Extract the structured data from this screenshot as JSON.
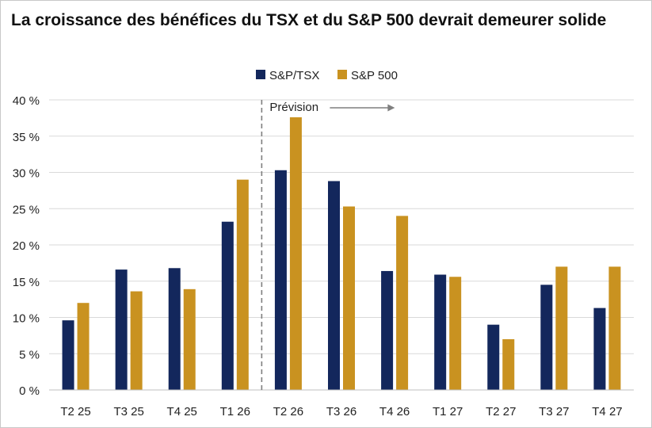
{
  "title": "La croissance des bénéfices du TSX et du S&P 500 devrait demeurer solide",
  "chart_data": {
    "type": "bar",
    "title": "La croissance des bénéfices du TSX et du S&P 500 devrait demeurer solide",
    "categories": [
      "T2 25",
      "T3 25",
      "T4 25",
      "T1 26",
      "T2 26",
      "T3 26",
      "T4 26",
      "T1 27",
      "T2 27",
      "T3 27",
      "T4 27"
    ],
    "series": [
      {
        "name": "S&P/TSX",
        "color": "#13275c",
        "values": [
          9.6,
          16.6,
          16.8,
          23.2,
          30.3,
          28.8,
          16.4,
          15.9,
          9.0,
          14.5,
          11.3
        ]
      },
      {
        "name": "S&P 500",
        "color": "#c99220",
        "values": [
          12.0,
          13.6,
          13.9,
          29.0,
          37.6,
          25.3,
          24.0,
          15.6,
          7.0,
          17.0,
          17.0
        ]
      }
    ],
    "yticks": [
      "0 %",
      "5 %",
      "10 %",
      "15 %",
      "20 %",
      "25 %",
      "30 %",
      "35 %",
      "40 %"
    ],
    "ylim": [
      0,
      40
    ],
    "ystep": 5,
    "grid": true,
    "legend": "top-center",
    "annotation": {
      "label": "Prévision",
      "after_category": "T1 26"
    }
  }
}
